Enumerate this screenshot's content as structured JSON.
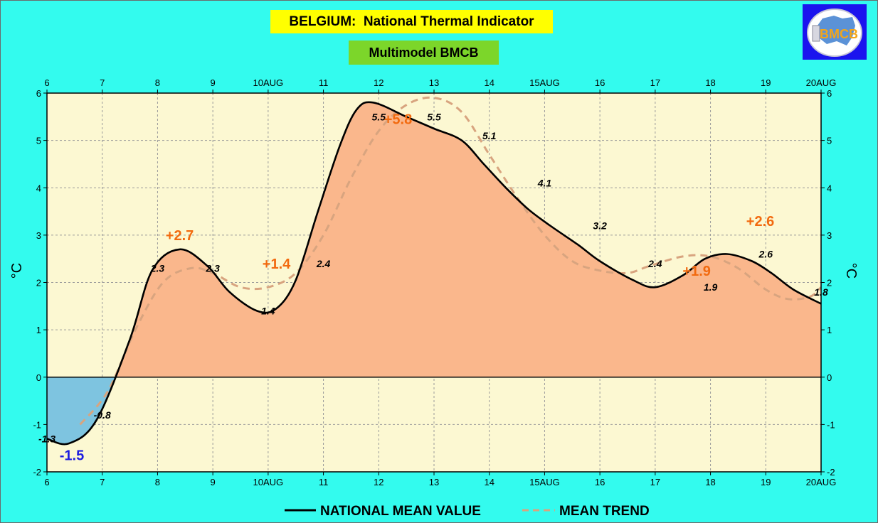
{
  "header": {
    "title": "BELGIUM:  National Thermal Indicator",
    "subtitle": "Multimodel BMCB",
    "logo_text": "BMCB"
  },
  "colors": {
    "background": "#33fbee",
    "plot_background": "#fcf8d2",
    "positive_fill": "#fab78c",
    "negative_fill": "#7ec4e0",
    "mean_line": "#000000",
    "trend_line": "#d8a47f",
    "extreme_positive_label": "#f26a0f",
    "extreme_negative_label": "#1c1ce0"
  },
  "legend": {
    "mean": "NATIONAL MEAN VALUE",
    "trend": "MEAN TREND"
  },
  "chart_data": {
    "type": "area",
    "title": "",
    "xlabel": "",
    "ylabel": "°C",
    "x_ticks": [
      "6",
      "7",
      "8",
      "9",
      "10AUG",
      "11",
      "12",
      "13",
      "14",
      "15AUG",
      "16",
      "17",
      "18",
      "19",
      "20AUG"
    ],
    "ylim": [
      -2,
      6
    ],
    "y_ticks": [
      -2,
      -1,
      0,
      1,
      2,
      3,
      4,
      5,
      6
    ],
    "grid": true,
    "legend_position": "bottom",
    "series": [
      {
        "name": "NATIONAL MEAN VALUE",
        "x": [
          0,
          0.4,
          0.9,
          1.5,
          1.9,
          2.4,
          2.9,
          3.3,
          3.8,
          4.15,
          4.5,
          4.9,
          5.3,
          5.6,
          5.9,
          6.5,
          7.0,
          7.5,
          7.9,
          8.3,
          8.7,
          9.1,
          9.6,
          10.0,
          10.6,
          11.0,
          11.5,
          11.9,
          12.3,
          12.75,
          13.1,
          13.5,
          14.0
        ],
        "values": [
          -1.3,
          -1.4,
          -0.9,
          0.8,
          2.25,
          2.7,
          2.35,
          1.8,
          1.4,
          1.45,
          2.05,
          3.5,
          4.9,
          5.65,
          5.8,
          5.5,
          5.25,
          5.0,
          4.5,
          4.0,
          3.55,
          3.2,
          2.8,
          2.45,
          2.05,
          1.9,
          2.15,
          2.5,
          2.6,
          2.45,
          2.2,
          1.85,
          1.55
        ]
      },
      {
        "name": "MEAN TREND",
        "x": [
          0.6,
          1.1,
          1.6,
          2.1,
          2.6,
          3.0,
          3.5,
          4.0,
          4.5,
          5.0,
          5.5,
          6.0,
          6.5,
          7.0,
          7.5,
          8.0,
          8.5,
          9.0,
          9.5,
          10.0,
          10.5,
          10.9,
          11.5,
          12.0,
          12.5,
          13.0,
          13.4,
          13.8,
          14.0
        ],
        "values": [
          -1.0,
          -0.3,
          1.0,
          2.0,
          2.3,
          2.2,
          1.9,
          1.9,
          2.2,
          3.0,
          4.2,
          5.2,
          5.75,
          5.9,
          5.6,
          4.7,
          3.8,
          3.0,
          2.45,
          2.25,
          2.2,
          2.35,
          2.55,
          2.55,
          2.3,
          1.85,
          1.65,
          1.7,
          1.9
        ]
      }
    ],
    "point_labels": [
      {
        "x": 0,
        "y": -1.3,
        "text": "-1.3"
      },
      {
        "x": 1,
        "y": -0.8,
        "text": "-0.8"
      },
      {
        "x": 2,
        "y": 2.3,
        "text": "2.3"
      },
      {
        "x": 3,
        "y": 2.3,
        "text": "2.3"
      },
      {
        "x": 4,
        "y": 1.4,
        "text": "1.4"
      },
      {
        "x": 5,
        "y": 2.4,
        "text": "2.4"
      },
      {
        "x": 6,
        "y": 5.5,
        "text": "5.5"
      },
      {
        "x": 7,
        "y": 5.5,
        "text": "5.5"
      },
      {
        "x": 8,
        "y": 5.1,
        "text": "5.1"
      },
      {
        "x": 9,
        "y": 4.1,
        "text": "4.1"
      },
      {
        "x": 10,
        "y": 3.2,
        "text": "3.2"
      },
      {
        "x": 11,
        "y": 2.4,
        "text": "2.4"
      },
      {
        "x": 12,
        "y": 1.9,
        "text": "1.9"
      },
      {
        "x": 13,
        "y": 2.6,
        "text": "2.6"
      },
      {
        "x": 14,
        "y": 1.8,
        "text": "1.8"
      }
    ],
    "extreme_labels": [
      {
        "x": 0.45,
        "y": -1.65,
        "text": "-1.5",
        "kind": "min"
      },
      {
        "x": 2.4,
        "y": 3.0,
        "text": "+2.7",
        "kind": "max"
      },
      {
        "x": 4.15,
        "y": 2.4,
        "text": "+1.4",
        "kind": "min"
      },
      {
        "x": 6.35,
        "y": 5.45,
        "text": "+5.8",
        "kind": "max"
      },
      {
        "x": 11.75,
        "y": 2.25,
        "text": "+1.9",
        "kind": "min"
      },
      {
        "x": 12.9,
        "y": 3.3,
        "text": "+2.6",
        "kind": "max"
      }
    ]
  }
}
